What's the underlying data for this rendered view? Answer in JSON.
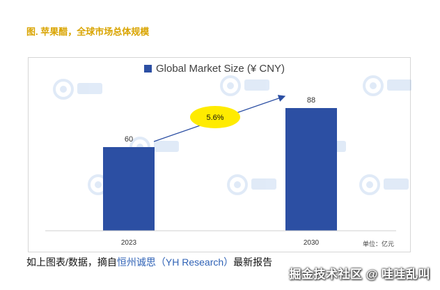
{
  "figure_title": "图. 苹果醋，全球市场总体规模",
  "caption": {
    "prefix": "如上图表/数据，摘自",
    "source": "恒州诚思（YH Research）",
    "suffix": "最新报告"
  },
  "site_watermark": "掘金技术社区 @ 哇哇乱叫",
  "colors": {
    "bar": "#2c4fa3",
    "title_gold": "#d9a400",
    "growth_bubble": "#ffeb00",
    "arrow": "#2c4fa3"
  },
  "chart_data": {
    "type": "bar",
    "legend": "Global Market Size (¥ CNY)",
    "categories": [
      "2023",
      "2030"
    ],
    "values": [
      60,
      88
    ],
    "data_labels": [
      "60",
      "88"
    ],
    "ylim": [
      0,
      100
    ],
    "grid": false,
    "legend_position": "top-center",
    "annotation": {
      "text": "5.6%",
      "type": "growth-arrow"
    },
    "unit_note": "单位：亿元"
  }
}
